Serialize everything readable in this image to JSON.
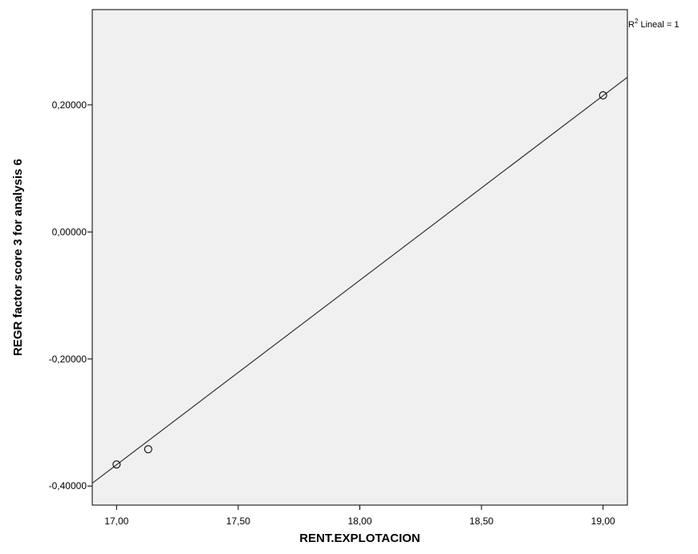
{
  "chart_data": {
    "type": "scatter",
    "xlabel": "RENT.EXPLOTACION",
    "ylabel": "REGR factor score   3 for analysis 6",
    "xlim": [
      16.9,
      19.1
    ],
    "ylim": [
      -0.43,
      0.35
    ],
    "x_ticks": [
      17.0,
      17.5,
      18.0,
      18.5,
      19.0
    ],
    "x_tick_labels": [
      "17,00",
      "17,50",
      "18,00",
      "18,50",
      "19,00"
    ],
    "y_ticks": [
      -0.4,
      -0.2,
      0.0,
      0.2
    ],
    "y_tick_labels": [
      "-0,40000",
      "-0,20000",
      "0,00000",
      "0,20000"
    ],
    "points": [
      {
        "x": 17.0,
        "y": -0.366
      },
      {
        "x": 17.13,
        "y": -0.342
      },
      {
        "x": 19.0,
        "y": 0.215
      }
    ],
    "fit_line": {
      "slope": 0.2905,
      "intercept": -5.305
    },
    "fit_label": {
      "prefix": "R",
      "superscript": "2",
      "suffix": " Lineal = 1"
    },
    "plot_background": "#f0f0f0",
    "frame_color": "#000000",
    "marker_color": "#000000",
    "grid": false,
    "legend": "none"
  }
}
